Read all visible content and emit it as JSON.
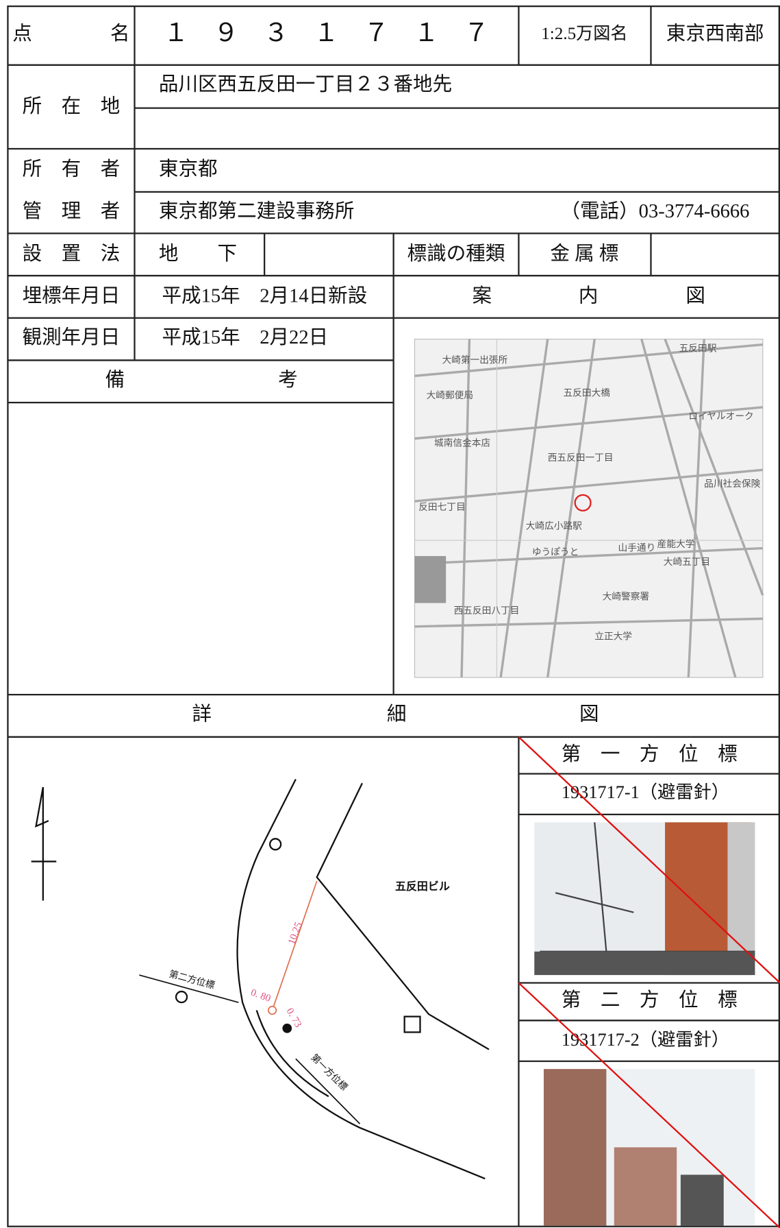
{
  "header": {
    "point_name_label": "点　　　　名",
    "point_name": "１　９　３　１　７　１　７",
    "map_scale_label": "1:2.5万図名",
    "map_name": "東京西南部"
  },
  "location": {
    "label": "所　在　地",
    "address": "品川区西五反田一丁目２３番地先"
  },
  "owner": {
    "label": "所　有　者",
    "value": "東京都"
  },
  "manager": {
    "label": "管　理　者",
    "value": "東京都第二建設事務所",
    "phone": "（電話）03-3774-6666"
  },
  "installation": {
    "label": "設　置　法",
    "value": "地　　下",
    "marker_type_label": "標識の種類",
    "marker_type": "金 属 標"
  },
  "burial_date": {
    "label": "埋標年月日",
    "value": "平成15年　2月14日新設"
  },
  "survey_date": {
    "label": "観測年月日",
    "value": "平成15年　2月22日"
  },
  "guide_map": {
    "title_chars": [
      "案",
      "内",
      "図"
    ],
    "labels": [
      "大崎第一出張所",
      "五反田駅",
      "大崎郵便局",
      "五反田大橋",
      "ロイヤルオーク",
      "城南信金本店",
      "西五反田一丁目",
      "品川社会保険",
      "反田七丁目",
      "大崎広小路駅",
      "ゆうぽうと",
      "産能大学",
      "大崎五丁目",
      "大崎警察署",
      "西五反田八丁目",
      "立正大学",
      "山手通り"
    ]
  },
  "remarks": {
    "title_chars": [
      "備",
      "考"
    ]
  },
  "detail": {
    "title_chars": [
      "詳",
      "細",
      "図"
    ]
  },
  "sketch": {
    "building": "五反田ビル",
    "distance_1": "10.25",
    "distance_2": "0. 80",
    "distance_3": "0. 73",
    "second_marker": "第二方位標",
    "first_marker": "第一方位標"
  },
  "azimuth_1": {
    "title": "第　一　方　位　標",
    "id": "1931717-1（避雷針）"
  },
  "azimuth_2": {
    "title": "第　二　方　位　標",
    "id": "1931717-2（避雷針）"
  }
}
